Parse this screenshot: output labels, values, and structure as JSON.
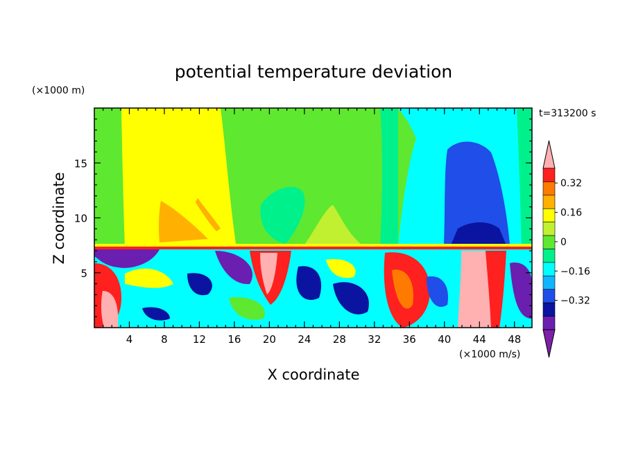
{
  "chart_data": {
    "type": "heatmap",
    "title": "potential temperature deviation",
    "xlabel": "X coordinate",
    "ylabel": "Z coordinate",
    "x_unit": "(×1000 m/s)",
    "y_unit": "(×1000 m)",
    "time_label": "t=313200 s",
    "xlim": [
      0,
      50
    ],
    "ylim": [
      0,
      20
    ],
    "x_ticks": [
      4,
      8,
      12,
      16,
      20,
      24,
      28,
      32,
      36,
      40,
      44,
      48
    ],
    "y_ticks": [
      5,
      10,
      15
    ],
    "colorbar": {
      "levels": [
        -0.48,
        -0.4,
        -0.32,
        -0.24,
        -0.16,
        -0.08,
        0,
        0.08,
        0.16,
        0.24,
        0.32,
        0.4
      ],
      "tick_labels": [
        "0.32",
        "0.16",
        "0",
        "−0.16",
        "−0.32"
      ],
      "tick_values": [
        0.32,
        0.16,
        0,
        -0.16,
        -0.32
      ],
      "colors": [
        "#7e1fa8",
        "#6a1fb0",
        "#0a14a0",
        "#1f4ee8",
        "#0fb6ff",
        "#00ffff",
        "#00f08c",
        "#5ee830",
        "#c0f030",
        "#ffff00",
        "#ffb000",
        "#ff7a00",
        "#ff2020",
        "#ffb0b0"
      ]
    },
    "fields": [
      {
        "name": "upper-left-positive",
        "x": [
          1,
          14
        ],
        "z": [
          8,
          19.5
        ],
        "value": 0.2
      },
      {
        "name": "upper-center-neutral",
        "x": [
          14,
          32
        ],
        "z": [
          8,
          19.5
        ],
        "value": 0.04
      },
      {
        "name": "center-lens",
        "x": [
          17,
          22
        ],
        "z": [
          9,
          12
        ],
        "value": 0
      },
      {
        "name": "upper-right-negative",
        "x": [
          34,
          50
        ],
        "z": [
          8,
          19
        ],
        "value": -0.14
      },
      {
        "name": "right-column-strong-negative",
        "x": [
          40,
          46
        ],
        "z": [
          8,
          17
        ],
        "value": -0.3
      },
      {
        "name": "orange-plume",
        "x": [
          8,
          13
        ],
        "z": [
          8.5,
          11.5
        ],
        "value": 0.26
      },
      {
        "name": "lower-turbulent-layer",
        "x": [
          0,
          50
        ],
        "z": [
          0,
          7.2
        ],
        "value_range": [
          -0.48,
          0.4
        ]
      }
    ]
  }
}
